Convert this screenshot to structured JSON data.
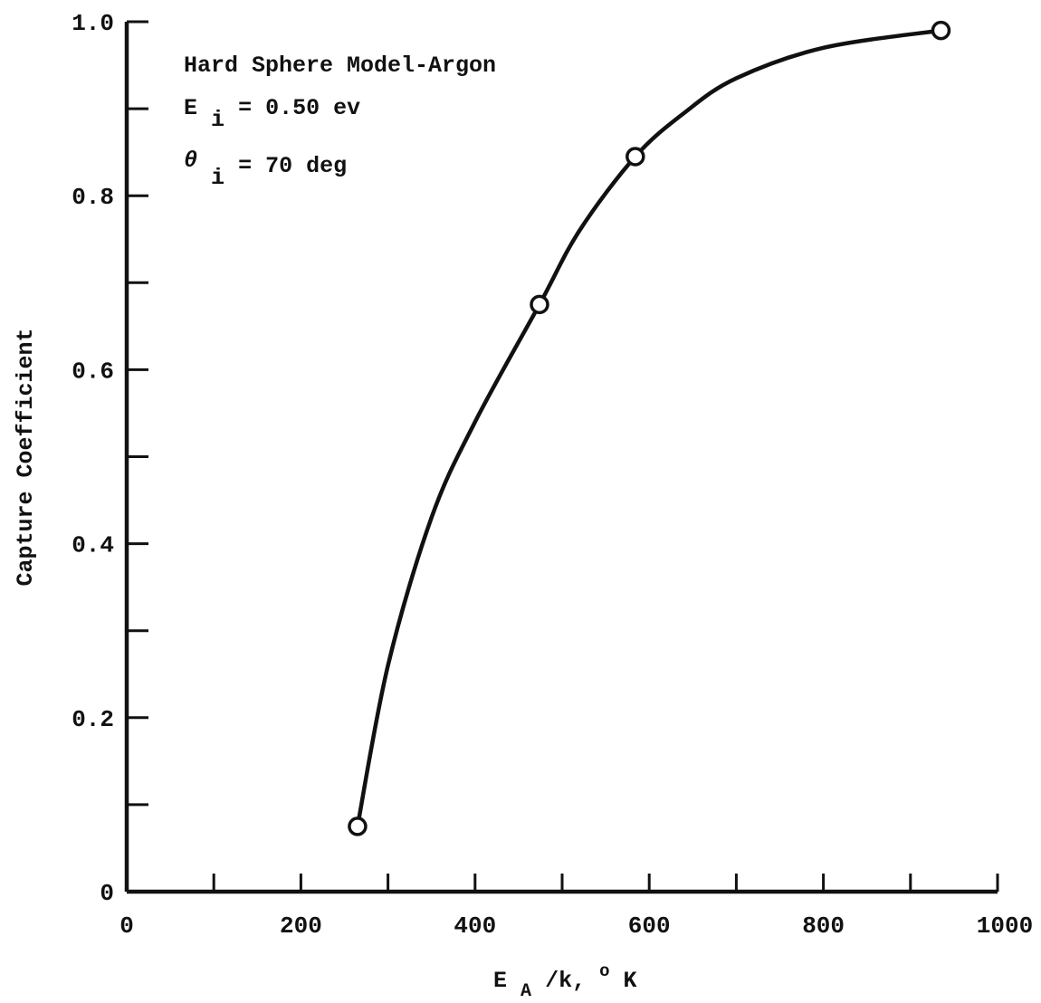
{
  "chart_data": {
    "type": "line",
    "title": "",
    "xlabel": "E_A/k, °K",
    "xlabel_parts": {
      "main": "E",
      "sub": "A",
      "rest": "/k, ",
      "sup": "o",
      "unit": "K"
    },
    "ylabel": "Capture Coefficient",
    "xlim": [
      0,
      1000
    ],
    "ylim": [
      0,
      1.0
    ],
    "x_ticks": [
      0,
      200,
      400,
      600,
      800,
      1000
    ],
    "x_tick_labels": [
      "0",
      "200",
      "400",
      "600",
      "800",
      "1000"
    ],
    "x_minor_ticks": [
      100,
      300,
      500,
      700,
      900
    ],
    "y_ticks": [
      0,
      0.2,
      0.4,
      0.6,
      0.8,
      1.0
    ],
    "y_tick_labels": [
      "0",
      "0.2",
      "0.4",
      "0.6",
      "0.8",
      "1.0"
    ],
    "y_minor_ticks": [
      0.1,
      0.3,
      0.5,
      0.7,
      0.9
    ],
    "grid": false,
    "series": [
      {
        "x": [
          265,
          474,
          584,
          935
        ],
        "y": [
          0.075,
          0.675,
          0.845,
          0.99
        ],
        "marker": "open-circle",
        "color": "#111111"
      }
    ],
    "curve": {
      "x": [
        265,
        300,
        350,
        400,
        474,
        520,
        584,
        640,
        700,
        800,
        935
      ],
      "y": [
        0.075,
        0.26,
        0.43,
        0.54,
        0.675,
        0.76,
        0.845,
        0.895,
        0.935,
        0.97,
        0.99
      ]
    },
    "annotations": {
      "line1": "Hard Sphere Model-Argon",
      "line2_main": "E",
      "line2_sub": "i",
      "line2_rest": " = 0.50 ev",
      "line3_main": "θ",
      "line3_sub": "i",
      "line3_rest": " = 70 deg"
    }
  }
}
